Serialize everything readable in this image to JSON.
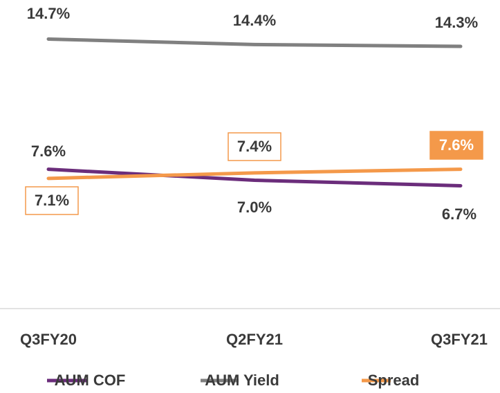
{
  "chart_data": {
    "type": "line",
    "categories": [
      "Q3FY20",
      "Q2FY21",
      "Q3FY21"
    ],
    "series": [
      {
        "name": "AUM COF",
        "color": "#6b2d7b",
        "values": [
          7.6,
          7.0,
          6.7
        ],
        "value_labels": [
          "7.6%",
          "7.0%",
          "6.7%"
        ]
      },
      {
        "name": "AUM Yield",
        "color": "#808080",
        "values": [
          14.7,
          14.4,
          14.3
        ],
        "value_labels": [
          "14.7%",
          "14.4%",
          "14.3%"
        ]
      },
      {
        "name": "Spread",
        "color": "#f4994a",
        "values": [
          7.1,
          7.4,
          7.6
        ],
        "value_labels": [
          "7.1%",
          "7.4%",
          "7.6%"
        ]
      }
    ],
    "ylim": [
      0,
      16
    ]
  }
}
